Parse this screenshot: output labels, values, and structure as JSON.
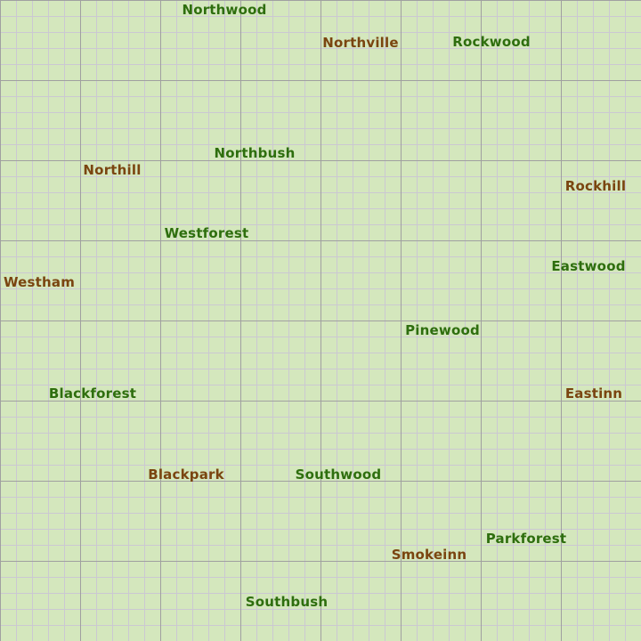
{
  "colors": {
    "background": "#d4e7bd",
    "grid_major": "#a0a0a0",
    "grid_minor": "#cbc8d2",
    "label_green": "#2e6e0e",
    "label_brown": "#7a4510"
  },
  "labels": [
    {
      "text": "Northwood",
      "color": "#2e6e0e"
    },
    {
      "text": "Northville",
      "color": "#7a4510"
    },
    {
      "text": "Rockwood",
      "color": "#2e6e0e"
    },
    {
      "text": "Northbush",
      "color": "#2e6e0e"
    },
    {
      "text": "Northill",
      "color": "#7a4510"
    },
    {
      "text": "Rockhill",
      "color": "#7a4510"
    },
    {
      "text": "Westforest",
      "color": "#2e6e0e"
    },
    {
      "text": "Eastwood",
      "color": "#2e6e0e"
    },
    {
      "text": "Westham",
      "color": "#7a4510"
    },
    {
      "text": "Pinewood",
      "color": "#2e6e0e"
    },
    {
      "text": "Blackforest",
      "color": "#2e6e0e"
    },
    {
      "text": "Eastinn",
      "color": "#7a4510"
    },
    {
      "text": "Blackpark",
      "color": "#7a4510"
    },
    {
      "text": "Southwood",
      "color": "#2e6e0e"
    },
    {
      "text": "Parkforest",
      "color": "#2e6e0e"
    },
    {
      "text": "Smokeinn",
      "color": "#7a4510"
    },
    {
      "text": "Southbush",
      "color": "#2e6e0e"
    }
  ]
}
